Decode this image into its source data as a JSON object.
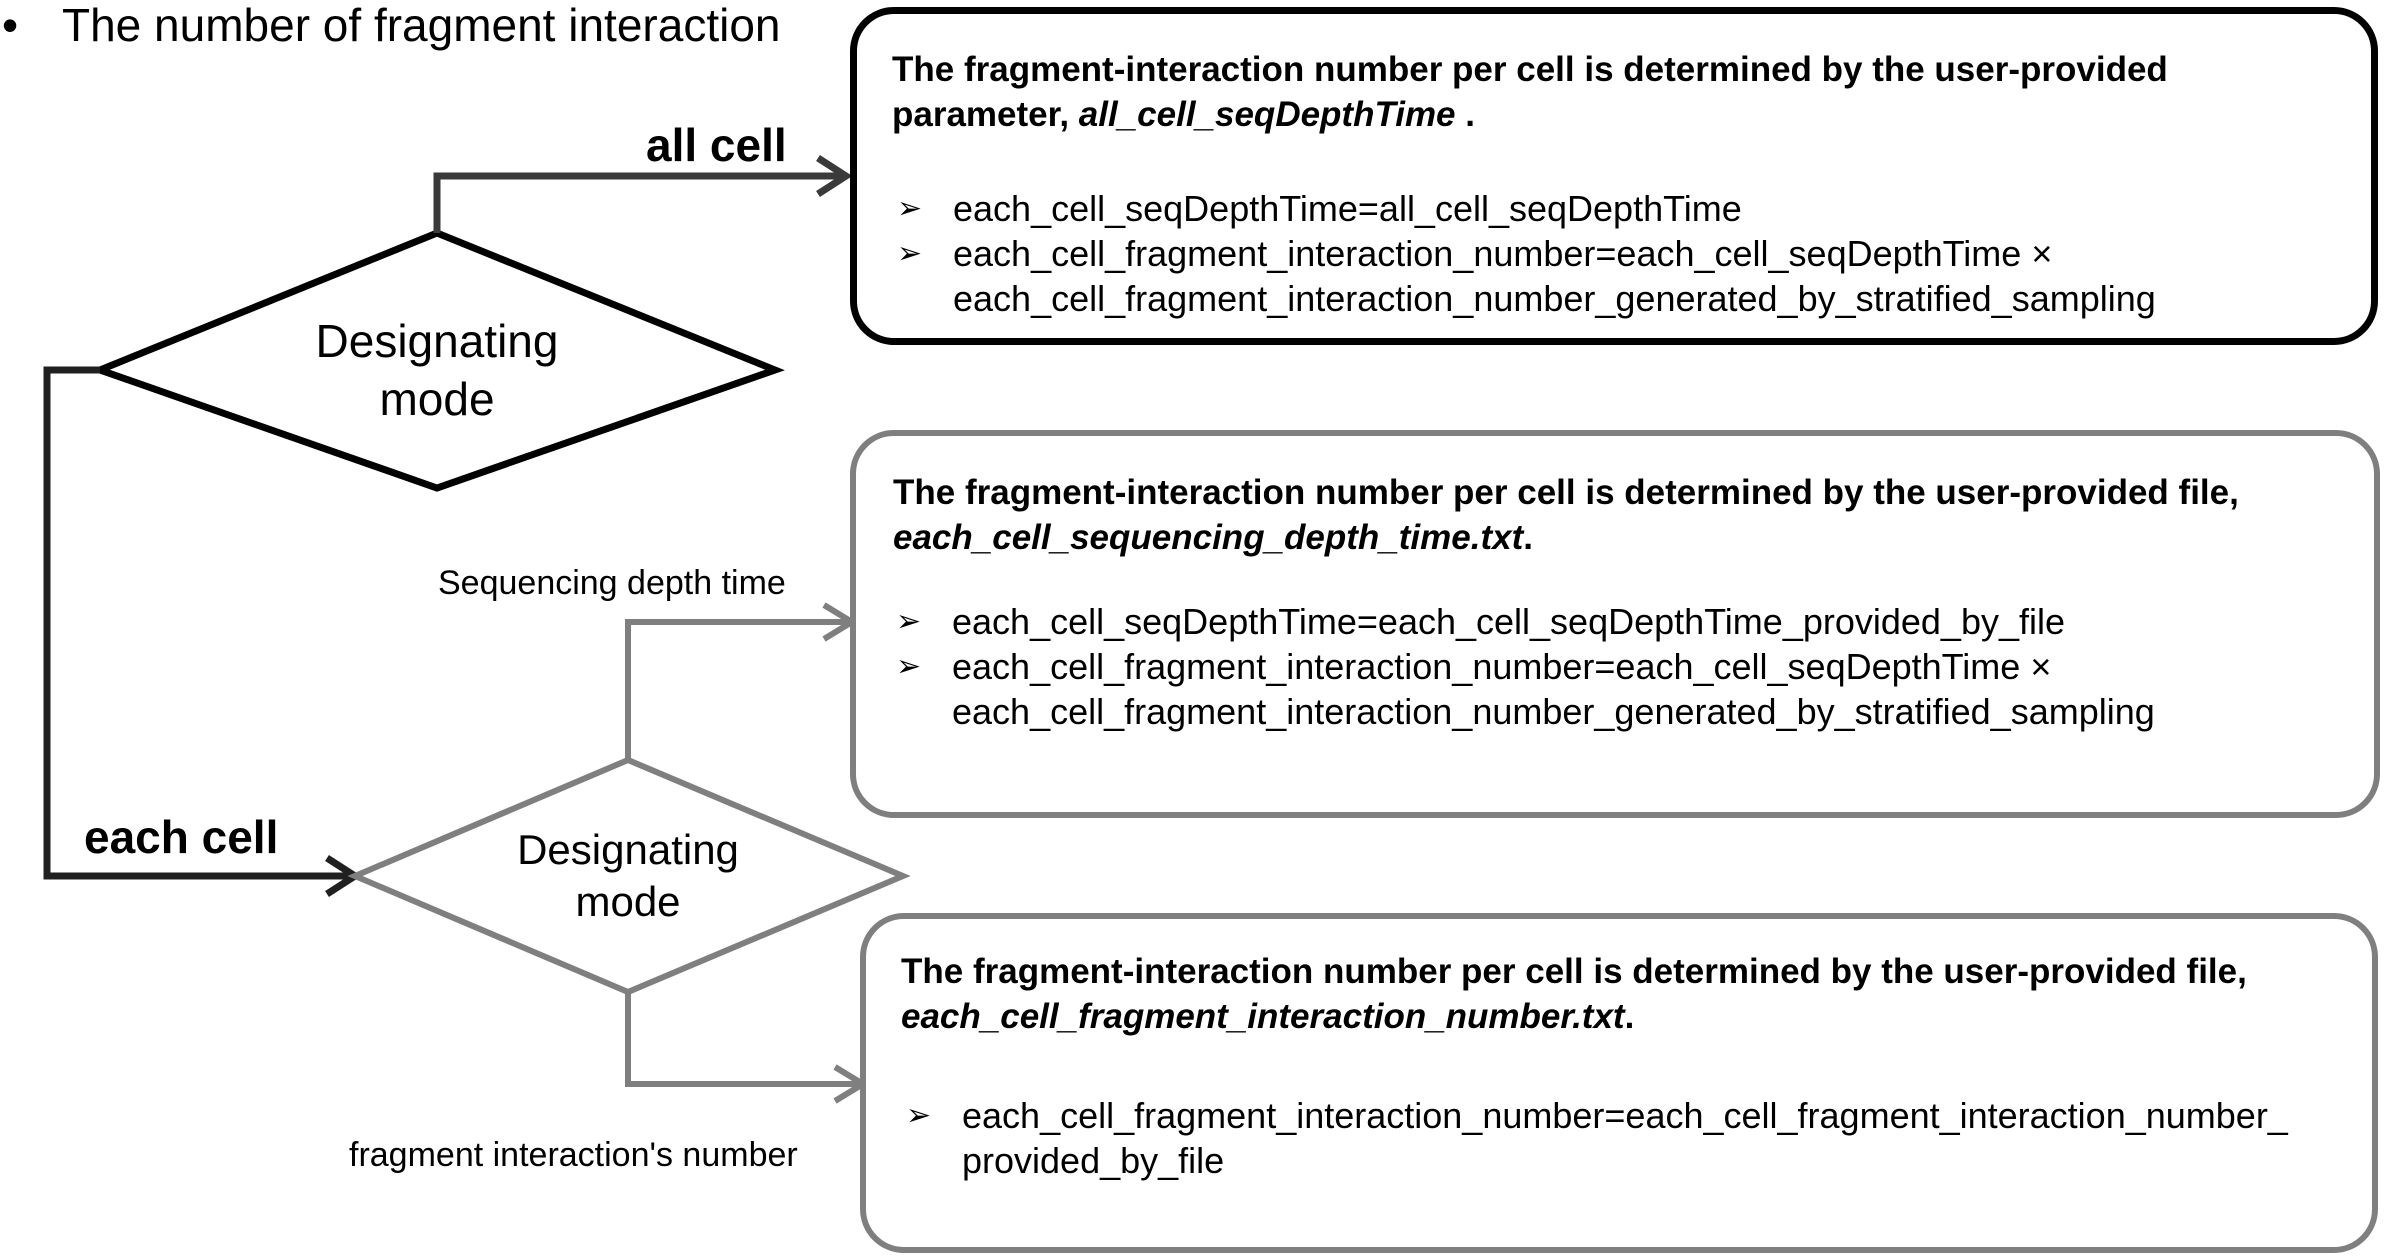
{
  "title": {
    "bullet": "•",
    "text": "The number of fragment interaction"
  },
  "decision_top": {
    "line1": "Designating",
    "line2": "mode"
  },
  "decision_bottom": {
    "line1": "Designating",
    "line2": "mode"
  },
  "edges": {
    "all_cell": "all cell",
    "each_cell": "each cell",
    "sequencing_depth_time": "Sequencing depth time",
    "fragment_number": "fragment interaction's number"
  },
  "box_all_cell": {
    "head_line1": "The fragment-interaction number per cell is determined  by the user-provided",
    "head_line2_prefix": "parameter, ",
    "head_line2_param": "all_cell_seqDepthTime",
    "head_line2_suffix": " .",
    "items": [
      {
        "lines": [
          "each_cell_seqDepthTime=all_cell_seqDepthTime"
        ]
      },
      {
        "lines": [
          "each_cell_fragment_interaction_number=each_cell_seqDepthTime ×",
          "each_cell_fragment_interaction_number_generated_by_stratified_sampling"
        ]
      }
    ]
  },
  "box_seq_depth": {
    "head_line1": "The fragment-interaction number per cell is determined by the user-provided file,",
    "head_line2_file": "each_cell_sequencing_depth_time.txt",
    "head_line2_suffix": ".",
    "items": [
      {
        "lines": [
          "each_cell_seqDepthTime=each_cell_seqDepthTime_provided_by_file"
        ]
      },
      {
        "lines": [
          "each_cell_fragment_interaction_number=each_cell_seqDepthTime ×",
          "each_cell_fragment_interaction_number_generated_by_stratified_sampling"
        ]
      }
    ]
  },
  "box_fragment_number": {
    "head_line1": "The fragment-interaction number per cell is determined by the user-provided file,",
    "head_line2_file": "each_cell_fragment_interaction_number.txt",
    "head_line2_suffix": ".",
    "items": [
      {
        "lines": [
          "each_cell_fragment_interaction_number=each_cell_fragment_interaction_number_",
          "provided_by_file"
        ]
      }
    ]
  },
  "bullet_glyph": "➢",
  "colors": {
    "primary": "#000000",
    "secondary": "#7f7f7f",
    "connector_dark": "#3a3a3a",
    "background": "#ffffff"
  }
}
